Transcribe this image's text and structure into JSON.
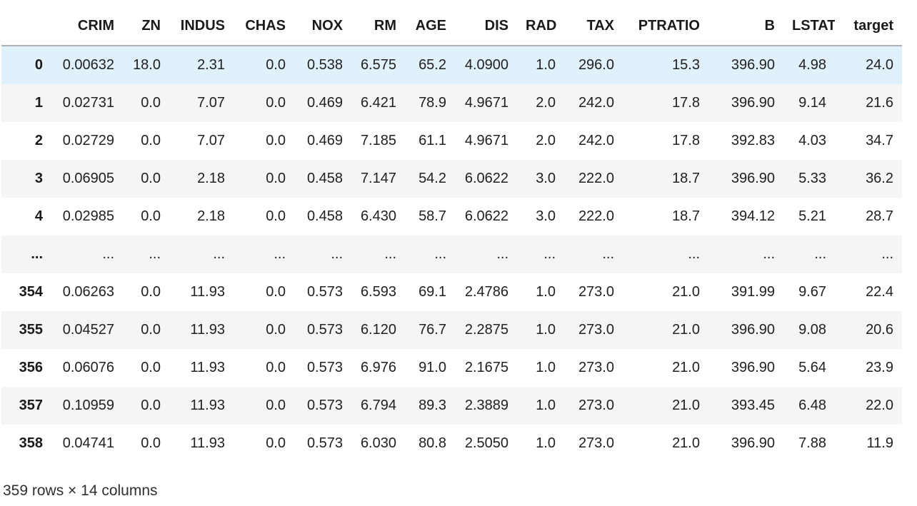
{
  "table": {
    "columns": [
      "CRIM",
      "ZN",
      "INDUS",
      "CHAS",
      "NOX",
      "RM",
      "AGE",
      "DIS",
      "RAD",
      "TAX",
      "PTRATIO",
      "B",
      "LSTAT",
      "target"
    ],
    "rows": [
      {
        "index": "0",
        "highlighted": true,
        "values": [
          "0.00632",
          "18.0",
          "2.31",
          "0.0",
          "0.538",
          "6.575",
          "65.2",
          "4.0900",
          "1.0",
          "296.0",
          "15.3",
          "396.90",
          "4.98",
          "24.0"
        ]
      },
      {
        "index": "1",
        "highlighted": false,
        "values": [
          "0.02731",
          "0.0",
          "7.07",
          "0.0",
          "0.469",
          "6.421",
          "78.9",
          "4.9671",
          "2.0",
          "242.0",
          "17.8",
          "396.90",
          "9.14",
          "21.6"
        ]
      },
      {
        "index": "2",
        "highlighted": false,
        "values": [
          "0.02729",
          "0.0",
          "7.07",
          "0.0",
          "0.469",
          "7.185",
          "61.1",
          "4.9671",
          "2.0",
          "242.0",
          "17.8",
          "392.83",
          "4.03",
          "34.7"
        ]
      },
      {
        "index": "3",
        "highlighted": false,
        "values": [
          "0.06905",
          "0.0",
          "2.18",
          "0.0",
          "0.458",
          "7.147",
          "54.2",
          "6.0622",
          "3.0",
          "222.0",
          "18.7",
          "396.90",
          "5.33",
          "36.2"
        ]
      },
      {
        "index": "4",
        "highlighted": false,
        "values": [
          "0.02985",
          "0.0",
          "2.18",
          "0.0",
          "0.458",
          "6.430",
          "58.7",
          "6.0622",
          "3.0",
          "222.0",
          "18.7",
          "394.12",
          "5.21",
          "28.7"
        ]
      },
      {
        "index": "...",
        "highlighted": false,
        "values": [
          "...",
          "...",
          "...",
          "...",
          "...",
          "...",
          "...",
          "...",
          "...",
          "...",
          "...",
          "...",
          "...",
          "..."
        ]
      },
      {
        "index": "354",
        "highlighted": false,
        "values": [
          "0.06263",
          "0.0",
          "11.93",
          "0.0",
          "0.573",
          "6.593",
          "69.1",
          "2.4786",
          "1.0",
          "273.0",
          "21.0",
          "391.99",
          "9.67",
          "22.4"
        ]
      },
      {
        "index": "355",
        "highlighted": false,
        "values": [
          "0.04527",
          "0.0",
          "11.93",
          "0.0",
          "0.573",
          "6.120",
          "76.7",
          "2.2875",
          "1.0",
          "273.0",
          "21.0",
          "396.90",
          "9.08",
          "20.6"
        ]
      },
      {
        "index": "356",
        "highlighted": false,
        "values": [
          "0.06076",
          "0.0",
          "11.93",
          "0.0",
          "0.573",
          "6.976",
          "91.0",
          "2.1675",
          "1.0",
          "273.0",
          "21.0",
          "396.90",
          "5.64",
          "23.9"
        ]
      },
      {
        "index": "357",
        "highlighted": false,
        "values": [
          "0.10959",
          "0.0",
          "11.93",
          "0.0",
          "0.573",
          "6.794",
          "89.3",
          "2.3889",
          "1.0",
          "273.0",
          "21.0",
          "393.45",
          "6.48",
          "22.0"
        ]
      },
      {
        "index": "358",
        "highlighted": false,
        "values": [
          "0.04741",
          "0.0",
          "11.93",
          "0.0",
          "0.573",
          "6.030",
          "80.8",
          "2.5050",
          "1.0",
          "273.0",
          "21.0",
          "396.90",
          "7.88",
          "11.9"
        ]
      }
    ],
    "summary": "359 rows × 14 columns",
    "colors": {
      "highlighted_row_background": "#e1f1fb",
      "stripe_row_background": "#f5f5f5",
      "header_border": "#b2b2b6",
      "text": "#212121"
    }
  }
}
